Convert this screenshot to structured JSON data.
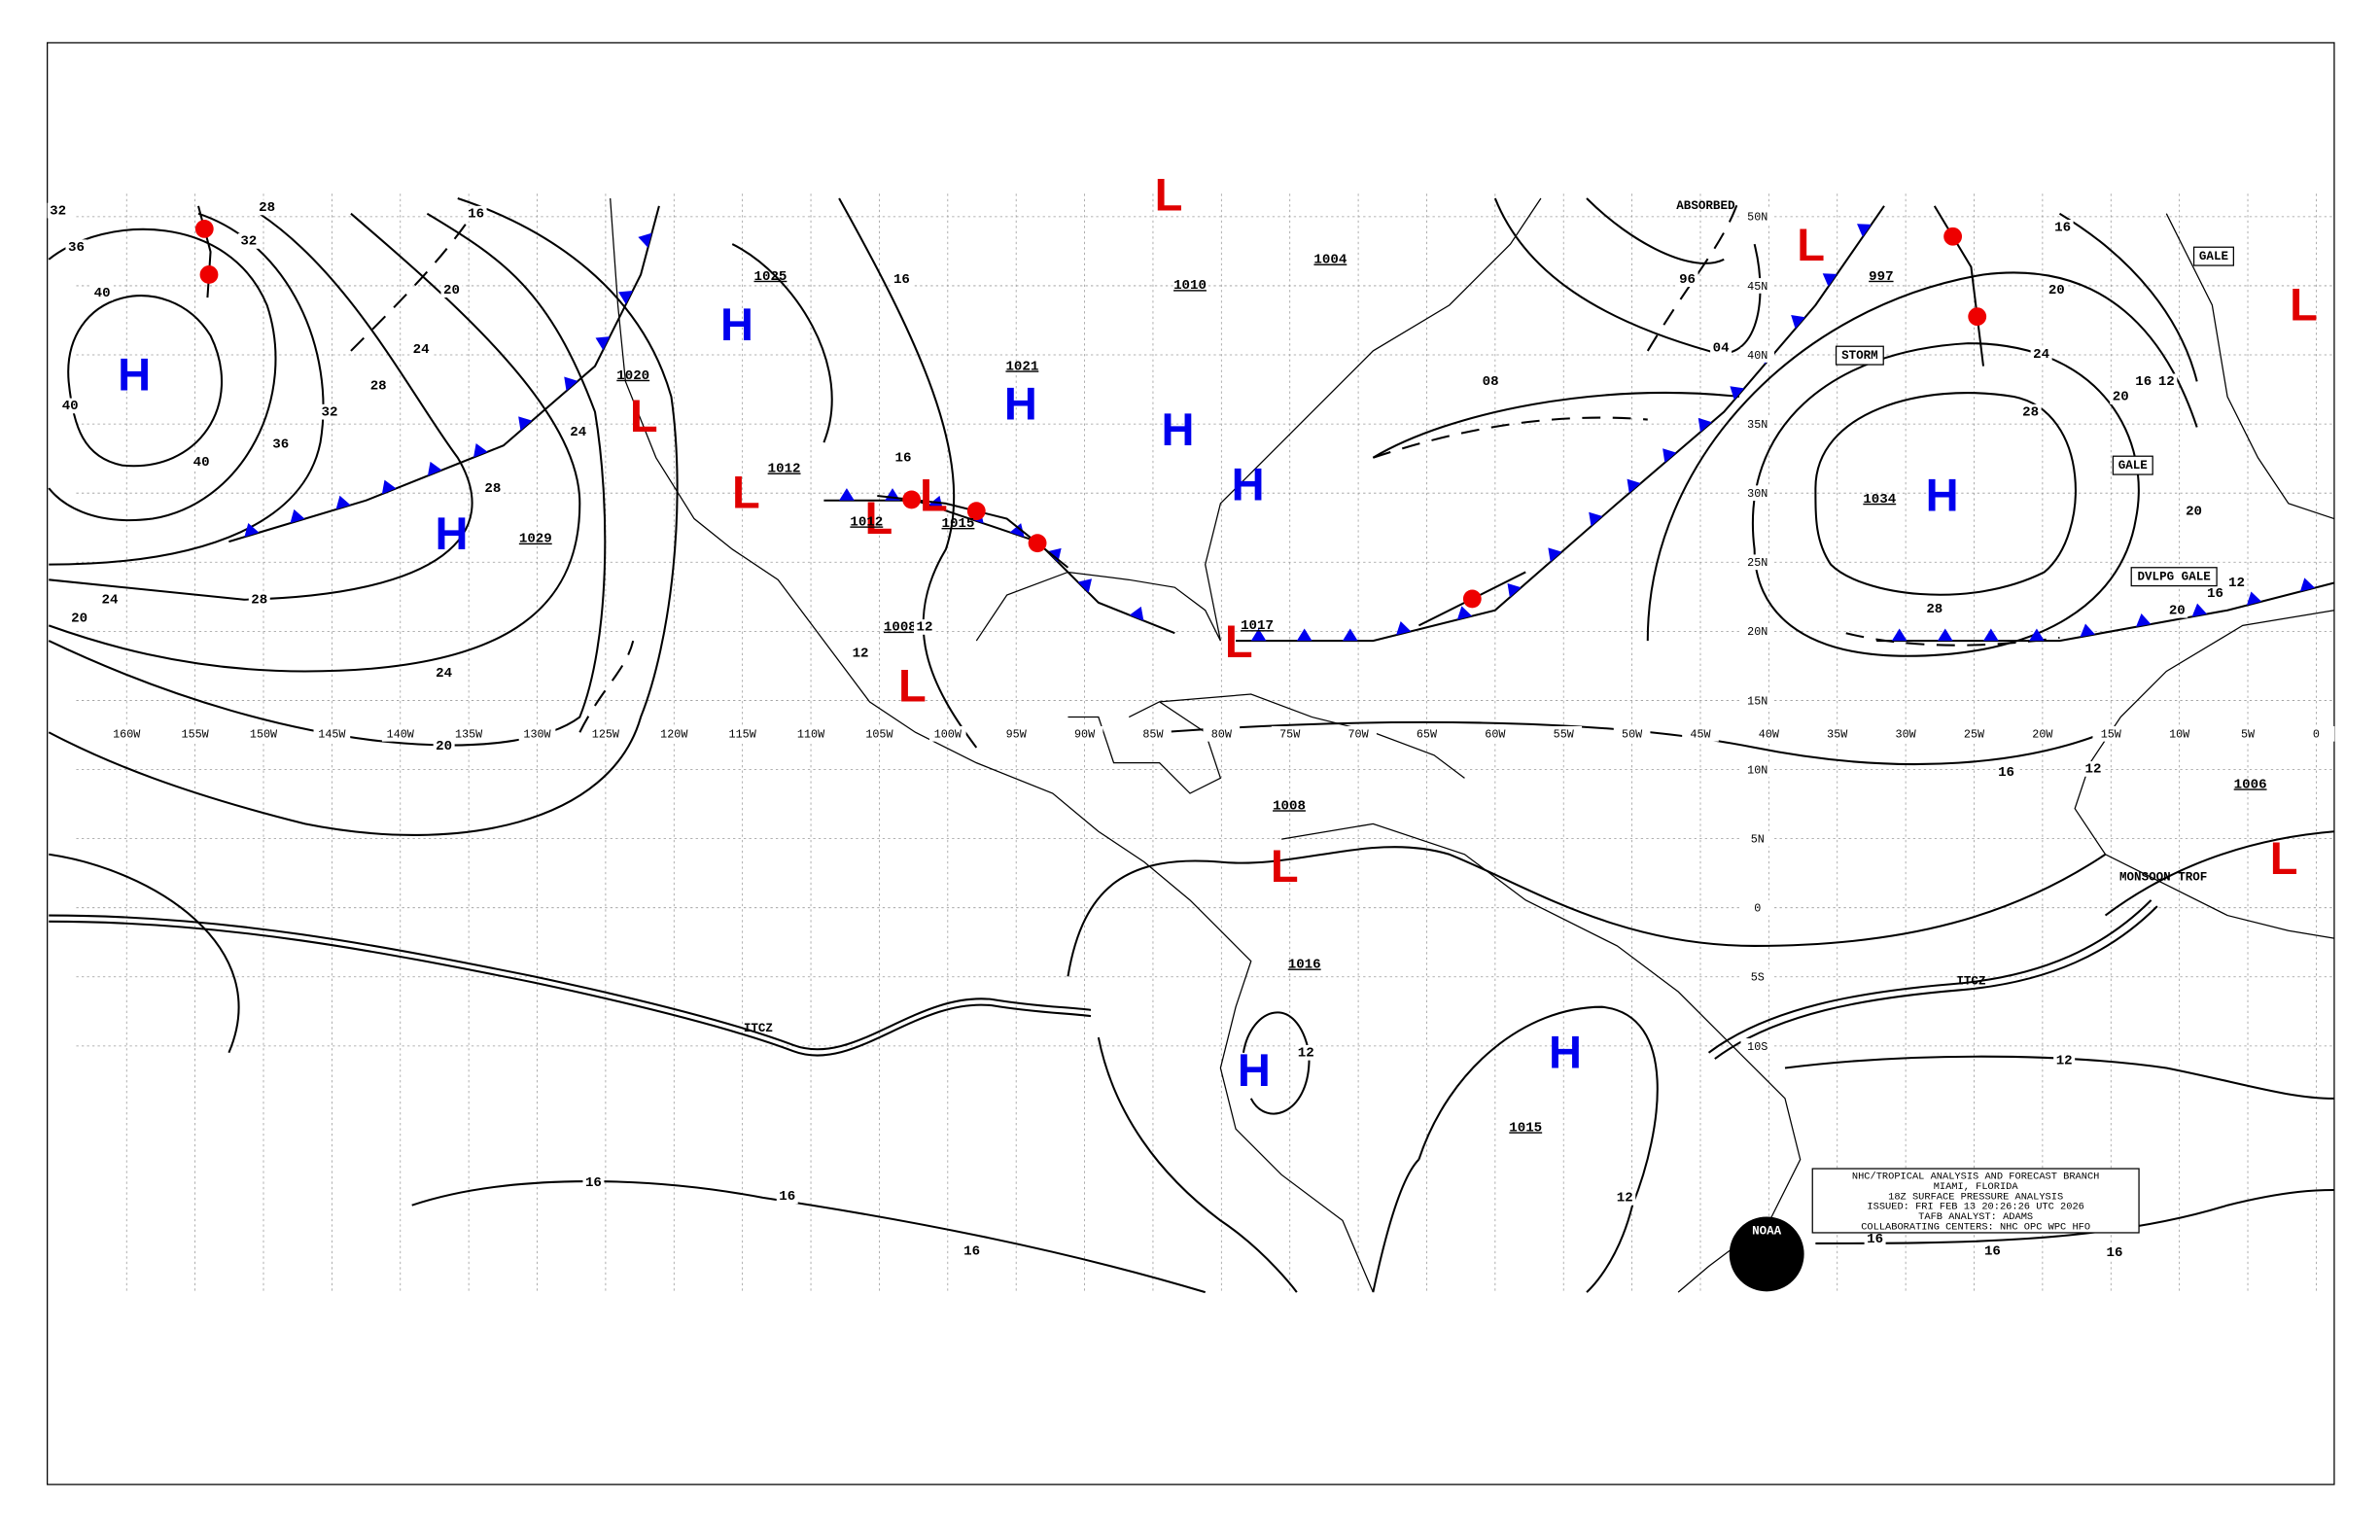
{
  "longitudes": [
    "160W",
    "155W",
    "150W",
    "145W",
    "140W",
    "135W",
    "130W",
    "125W",
    "120W",
    "115W",
    "110W",
    "105W",
    "100W",
    "95W",
    "90W",
    "85W",
    "80W",
    "75W",
    "70W",
    "65W",
    "60W",
    "55W",
    "50W",
    "45W",
    "40W",
    "35W",
    "30W",
    "25W",
    "20W",
    "15W",
    "10W",
    "5W",
    "0"
  ],
  "latitudes": [
    "50N",
    "45N",
    "40N",
    "35N",
    "30N",
    "25N",
    "20N",
    "15N",
    "10N",
    "5N",
    "0",
    "5S",
    "10S"
  ],
  "highs": [
    "H",
    "H",
    "H",
    "H",
    "H",
    "H",
    "H",
    "H",
    "H"
  ],
  "lows": [
    "L",
    "L",
    "L",
    "L",
    "L",
    "L",
    "L",
    "L",
    "L",
    "L",
    "L"
  ],
  "central_pressures": [
    "1025",
    "1020",
    "1012",
    "1029",
    "1021",
    "1010",
    "1004",
    "1015",
    "1012",
    "1008",
    "1017",
    "1008",
    "1016",
    "1034",
    "997",
    "1015",
    "1006"
  ],
  "isobar_labels": [
    "32",
    "28",
    "36",
    "32",
    "40",
    "40",
    "40",
    "36",
    "32",
    "28",
    "24",
    "20",
    "16",
    "24",
    "28",
    "24",
    "28",
    "20",
    "24",
    "20",
    "16",
    "16",
    "12",
    "12",
    "96",
    "04",
    "08",
    "28",
    "24",
    "20",
    "16",
    "20",
    "16",
    "12",
    "28",
    "16",
    "20",
    "12",
    "20",
    "16",
    "12",
    "12",
    "12",
    "12",
    "16",
    "16",
    "16",
    "16",
    "16",
    "16"
  ],
  "feature_labels": [
    "ABSORBED",
    "STORM",
    "GALE",
    "GALE",
    "DVLPG GALE",
    "MONSOON TROF",
    "ITCZ",
    "ITCZ"
  ],
  "info_box": [
    "NHC/TROPICAL ANALYSIS AND FORECAST BRANCH",
    "MIAMI, FLORIDA",
    "18Z SURFACE PRESSURE ANALYSIS",
    "ISSUED: FRI FEB 13 20:26:26 UTC 2026",
    "TAFB ANALYST: ADAMS",
    "COLLABORATING CENTERS: NHC OPC WPC HFO"
  ],
  "logo": "NOAA"
}
